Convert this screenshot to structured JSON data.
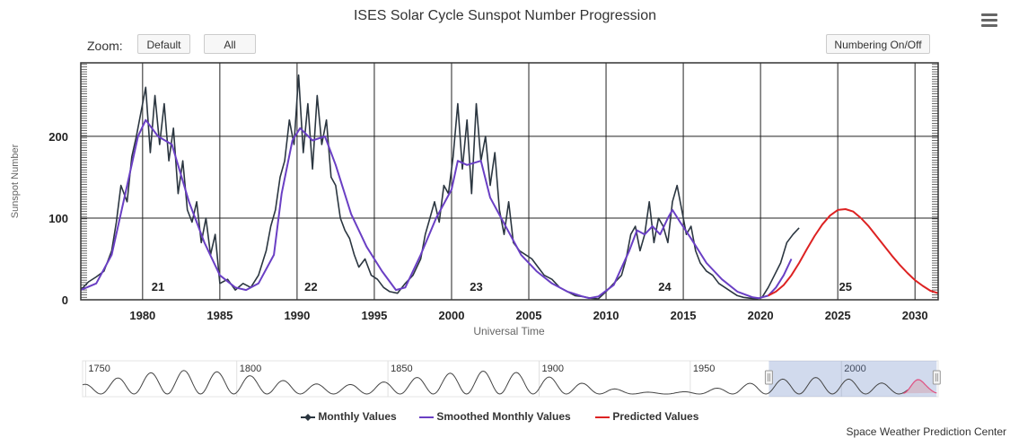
{
  "title": "ISES Solar Cycle Sunspot Number Progression",
  "zoom": {
    "label": "Zoom:",
    "buttons": [
      "Default",
      "All"
    ]
  },
  "numbering_button": "Numbering On/Off",
  "menu_icon": "hamburger-menu-icon",
  "credit": "Space Weather Prediction Center",
  "legend": [
    {
      "label": "Monthly Values",
      "color": "#2b3640",
      "marker": "diamond"
    },
    {
      "label": "Smoothed Monthly Values",
      "color": "#6a3fc4"
    },
    {
      "label": "Predicted Values",
      "color": "#dd2222"
    }
  ],
  "chart_data": {
    "type": "line",
    "title": "ISES Solar Cycle Sunspot Number Progression",
    "xlabel": "Universal Time",
    "ylabel": "Sunspot Number",
    "xlim": [
      1976,
      2031.5
    ],
    "ylim": [
      0,
      290
    ],
    "x_ticks": [
      1980,
      1985,
      1990,
      1995,
      2000,
      2005,
      2010,
      2015,
      2020,
      2025,
      2030
    ],
    "y_ticks": [
      0,
      100,
      200
    ],
    "grid": true,
    "legend_position": "bottom",
    "cycle_labels": [
      {
        "label": "21",
        "x": 1981.0
      },
      {
        "label": "22",
        "x": 1990.9
      },
      {
        "label": "23",
        "x": 2001.6
      },
      {
        "label": "24",
        "x": 2013.8
      },
      {
        "label": "25",
        "x": 2025.5
      }
    ],
    "series": [
      {
        "name": "Monthly Values",
        "x": [
          1976.0,
          1976.5,
          1977.0,
          1977.5,
          1978.0,
          1978.3,
          1978.6,
          1979.0,
          1979.3,
          1979.6,
          1979.9,
          1980.2,
          1980.5,
          1980.8,
          1981.1,
          1981.4,
          1981.7,
          1982.0,
          1982.3,
          1982.6,
          1982.9,
          1983.2,
          1983.5,
          1983.8,
          1984.1,
          1984.4,
          1984.7,
          1985.0,
          1985.5,
          1986.0,
          1986.5,
          1987.0,
          1987.5,
          1988.0,
          1988.3,
          1988.6,
          1988.9,
          1989.2,
          1989.5,
          1989.8,
          1990.1,
          1990.4,
          1990.7,
          1991.0,
          1991.3,
          1991.6,
          1991.9,
          1992.2,
          1992.5,
          1992.8,
          1993.1,
          1993.4,
          1993.7,
          1994.0,
          1994.4,
          1994.8,
          1995.2,
          1995.6,
          1996.0,
          1996.5,
          1997.0,
          1997.5,
          1998.0,
          1998.3,
          1998.6,
          1998.9,
          1999.2,
          1999.5,
          1999.8,
          2000.1,
          2000.4,
          2000.7,
          2001.0,
          2001.3,
          2001.6,
          2001.9,
          2002.2,
          2002.5,
          2002.8,
          2003.1,
          2003.4,
          2003.7,
          2004.0,
          2004.4,
          2004.8,
          2005.2,
          2005.6,
          2006.0,
          2006.5,
          2007.0,
          2007.5,
          2008.0,
          2008.5,
          2009.0,
          2009.5,
          2010.0,
          2010.5,
          2011.0,
          2011.3,
          2011.6,
          2011.9,
          2012.2,
          2012.5,
          2012.8,
          2013.1,
          2013.4,
          2013.7,
          2014.0,
          2014.3,
          2014.6,
          2014.9,
          2015.2,
          2015.5,
          2015.8,
          2016.1,
          2016.5,
          2016.9,
          2017.3,
          2017.7,
          2018.1,
          2018.5,
          2018.9,
          2019.3,
          2019.7,
          2020.1,
          2020.5,
          2020.9,
          2021.3,
          2021.7,
          2022.1,
          2022.5
        ],
        "y": [
          12,
          22,
          28,
          35,
          60,
          95,
          140,
          120,
          175,
          200,
          230,
          260,
          180,
          250,
          190,
          240,
          170,
          210,
          130,
          170,
          110,
          95,
          120,
          70,
          100,
          55,
          80,
          20,
          25,
          12,
          20,
          15,
          30,
          60,
          90,
          110,
          150,
          170,
          220,
          190,
          275,
          180,
          240,
          160,
          250,
          190,
          220,
          150,
          140,
          100,
          85,
          75,
          55,
          40,
          50,
          30,
          25,
          15,
          10,
          8,
          20,
          30,
          50,
          80,
          100,
          120,
          95,
          140,
          130,
          175,
          240,
          160,
          220,
          130,
          240,
          170,
          200,
          140,
          180,
          110,
          80,
          120,
          70,
          60,
          55,
          50,
          40,
          30,
          25,
          15,
          10,
          5,
          4,
          2,
          1,
          10,
          20,
          30,
          50,
          80,
          90,
          60,
          80,
          120,
          70,
          100,
          90,
          70,
          120,
          140,
          110,
          80,
          90,
          60,
          45,
          35,
          30,
          20,
          15,
          10,
          5,
          3,
          2,
          1,
          3,
          15,
          30,
          45,
          70,
          80,
          88
        ]
      },
      {
        "name": "Smoothed Monthly Values",
        "x": [
          1976.0,
          1977.0,
          1978.0,
          1979.0,
          1979.7,
          1980.2,
          1981.0,
          1981.9,
          1983.0,
          1984.0,
          1985.0,
          1986.0,
          1986.7,
          1987.5,
          1988.5,
          1989.0,
          1989.7,
          1990.2,
          1991.0,
          1991.8,
          1992.5,
          1993.5,
          1994.5,
          1995.5,
          1996.4,
          1997.0,
          1998.0,
          1999.0,
          2000.0,
          2000.4,
          2001.0,
          2001.9,
          2002.5,
          2003.5,
          2004.5,
          2005.5,
          2006.5,
          2007.5,
          2008.5,
          2008.9,
          2009.5,
          2010.5,
          2011.5,
          2012.0,
          2012.5,
          2013.0,
          2013.5,
          2014.0,
          2014.3,
          2014.8,
          2015.5,
          2016.5,
          2017.5,
          2018.5,
          2019.5,
          2019.9,
          2020.5,
          2021.0,
          2021.5,
          2022.0
        ],
        "y": [
          12,
          20,
          55,
          140,
          200,
          220,
          200,
          190,
          120,
          70,
          30,
          15,
          12,
          20,
          55,
          130,
          195,
          210,
          195,
          200,
          165,
          105,
          65,
          35,
          12,
          15,
          55,
          100,
          135,
          170,
          165,
          170,
          125,
          90,
          55,
          35,
          20,
          10,
          4,
          2,
          4,
          18,
          60,
          85,
          80,
          90,
          80,
          100,
          110,
          95,
          75,
          45,
          25,
          10,
          3,
          2,
          5,
          15,
          30,
          50
        ]
      },
      {
        "name": "Predicted Values",
        "x": [
          2020.5,
          2021.0,
          2021.5,
          2022.0,
          2022.5,
          2023.0,
          2023.5,
          2024.0,
          2024.5,
          2025.0,
          2025.5,
          2026.0,
          2026.5,
          2027.0,
          2027.5,
          2028.0,
          2028.5,
          2029.0,
          2029.5,
          2030.0,
          2030.5,
          2031.0,
          2031.5
        ],
        "y": [
          5,
          10,
          18,
          30,
          45,
          62,
          78,
          92,
          103,
          110,
          111,
          108,
          100,
          90,
          78,
          66,
          54,
          43,
          33,
          24,
          17,
          11,
          8
        ]
      }
    ]
  },
  "navigator": {
    "labels": [
      "1750",
      "1800",
      "1850",
      "1900",
      "1950",
      "2000"
    ],
    "xlim": [
      1749,
      2032
    ],
    "selection": [
      1976,
      2031.5
    ]
  }
}
